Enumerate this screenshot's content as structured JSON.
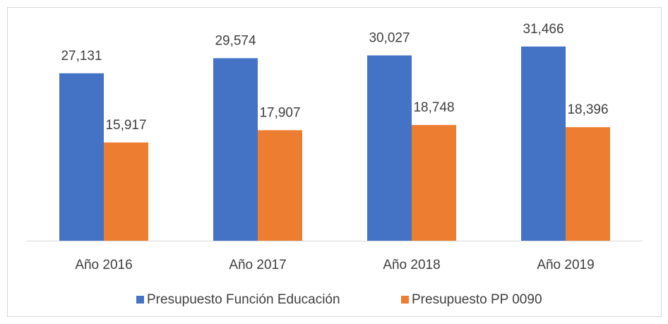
{
  "chart_data": {
    "type": "bar",
    "categories": [
      "Año 2016",
      "Año 2017",
      "Año 2018",
      "Año 2019"
    ],
    "series": [
      {
        "name": "Presupuesto Función Educación",
        "color": "#4472c4",
        "values": [
          27131,
          29574,
          30027,
          31466
        ],
        "value_labels": [
          "27,131",
          "29,574",
          "30,027",
          "31,466"
        ]
      },
      {
        "name": "Presupuesto PP 0090",
        "color": "#ed7d31",
        "values": [
          15917,
          17907,
          18748,
          18396
        ],
        "value_labels": [
          "15,917",
          "17,907",
          "18,748",
          "18,396"
        ]
      }
    ],
    "ylim": [
      0,
      35000
    ],
    "legend": "bottom"
  }
}
